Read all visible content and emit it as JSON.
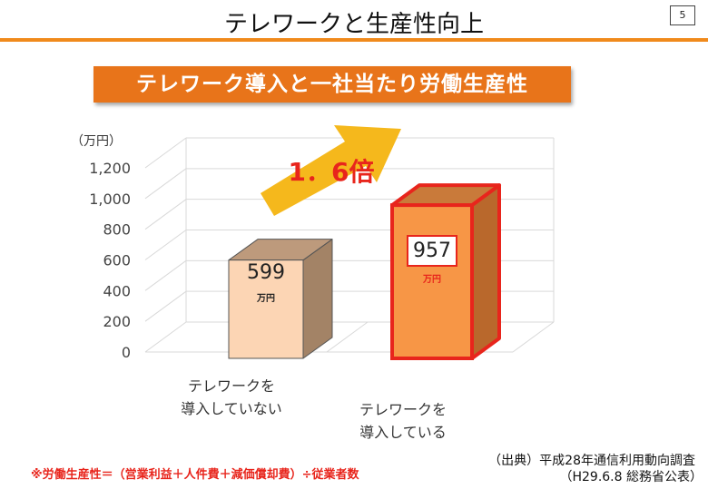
{
  "page": {
    "title": "テレワークと生産性向上",
    "page_number": "5",
    "footnote": "※労働生産性＝（営業利益＋人件費＋減価償却費）÷従業者数",
    "source_line1": "（出典）平成28年通信利用動向調査",
    "source_line2": "（H29.6.8 総務省公表）"
  },
  "colors": {
    "title_rule": "#f08a1c",
    "banner": "#e8741a",
    "bar_not_introduced": "#fcd5b4",
    "bar_introduced": "#f79646",
    "bar_introduced_border": "#e8251c",
    "arrow": "#f5b81c",
    "ratio_text": "#e8251c"
  },
  "chart_data": {
    "type": "bar",
    "title": "テレワーク導入と一社当たり労働生産性",
    "unit_label": "（万円）",
    "ylim": [
      0,
      1200
    ],
    "yticks": [
      "0",
      "200",
      "400",
      "600",
      "800",
      "1,000",
      "1,200"
    ],
    "categories": [
      [
        "テレワークを",
        "導入していない"
      ],
      [
        "テレワークを",
        "導入している"
      ]
    ],
    "values": [
      599,
      957
    ],
    "value_labels": [
      "599",
      "957"
    ],
    "value_unit": "万円",
    "ratio_label": "1．6倍",
    "grid": true
  }
}
